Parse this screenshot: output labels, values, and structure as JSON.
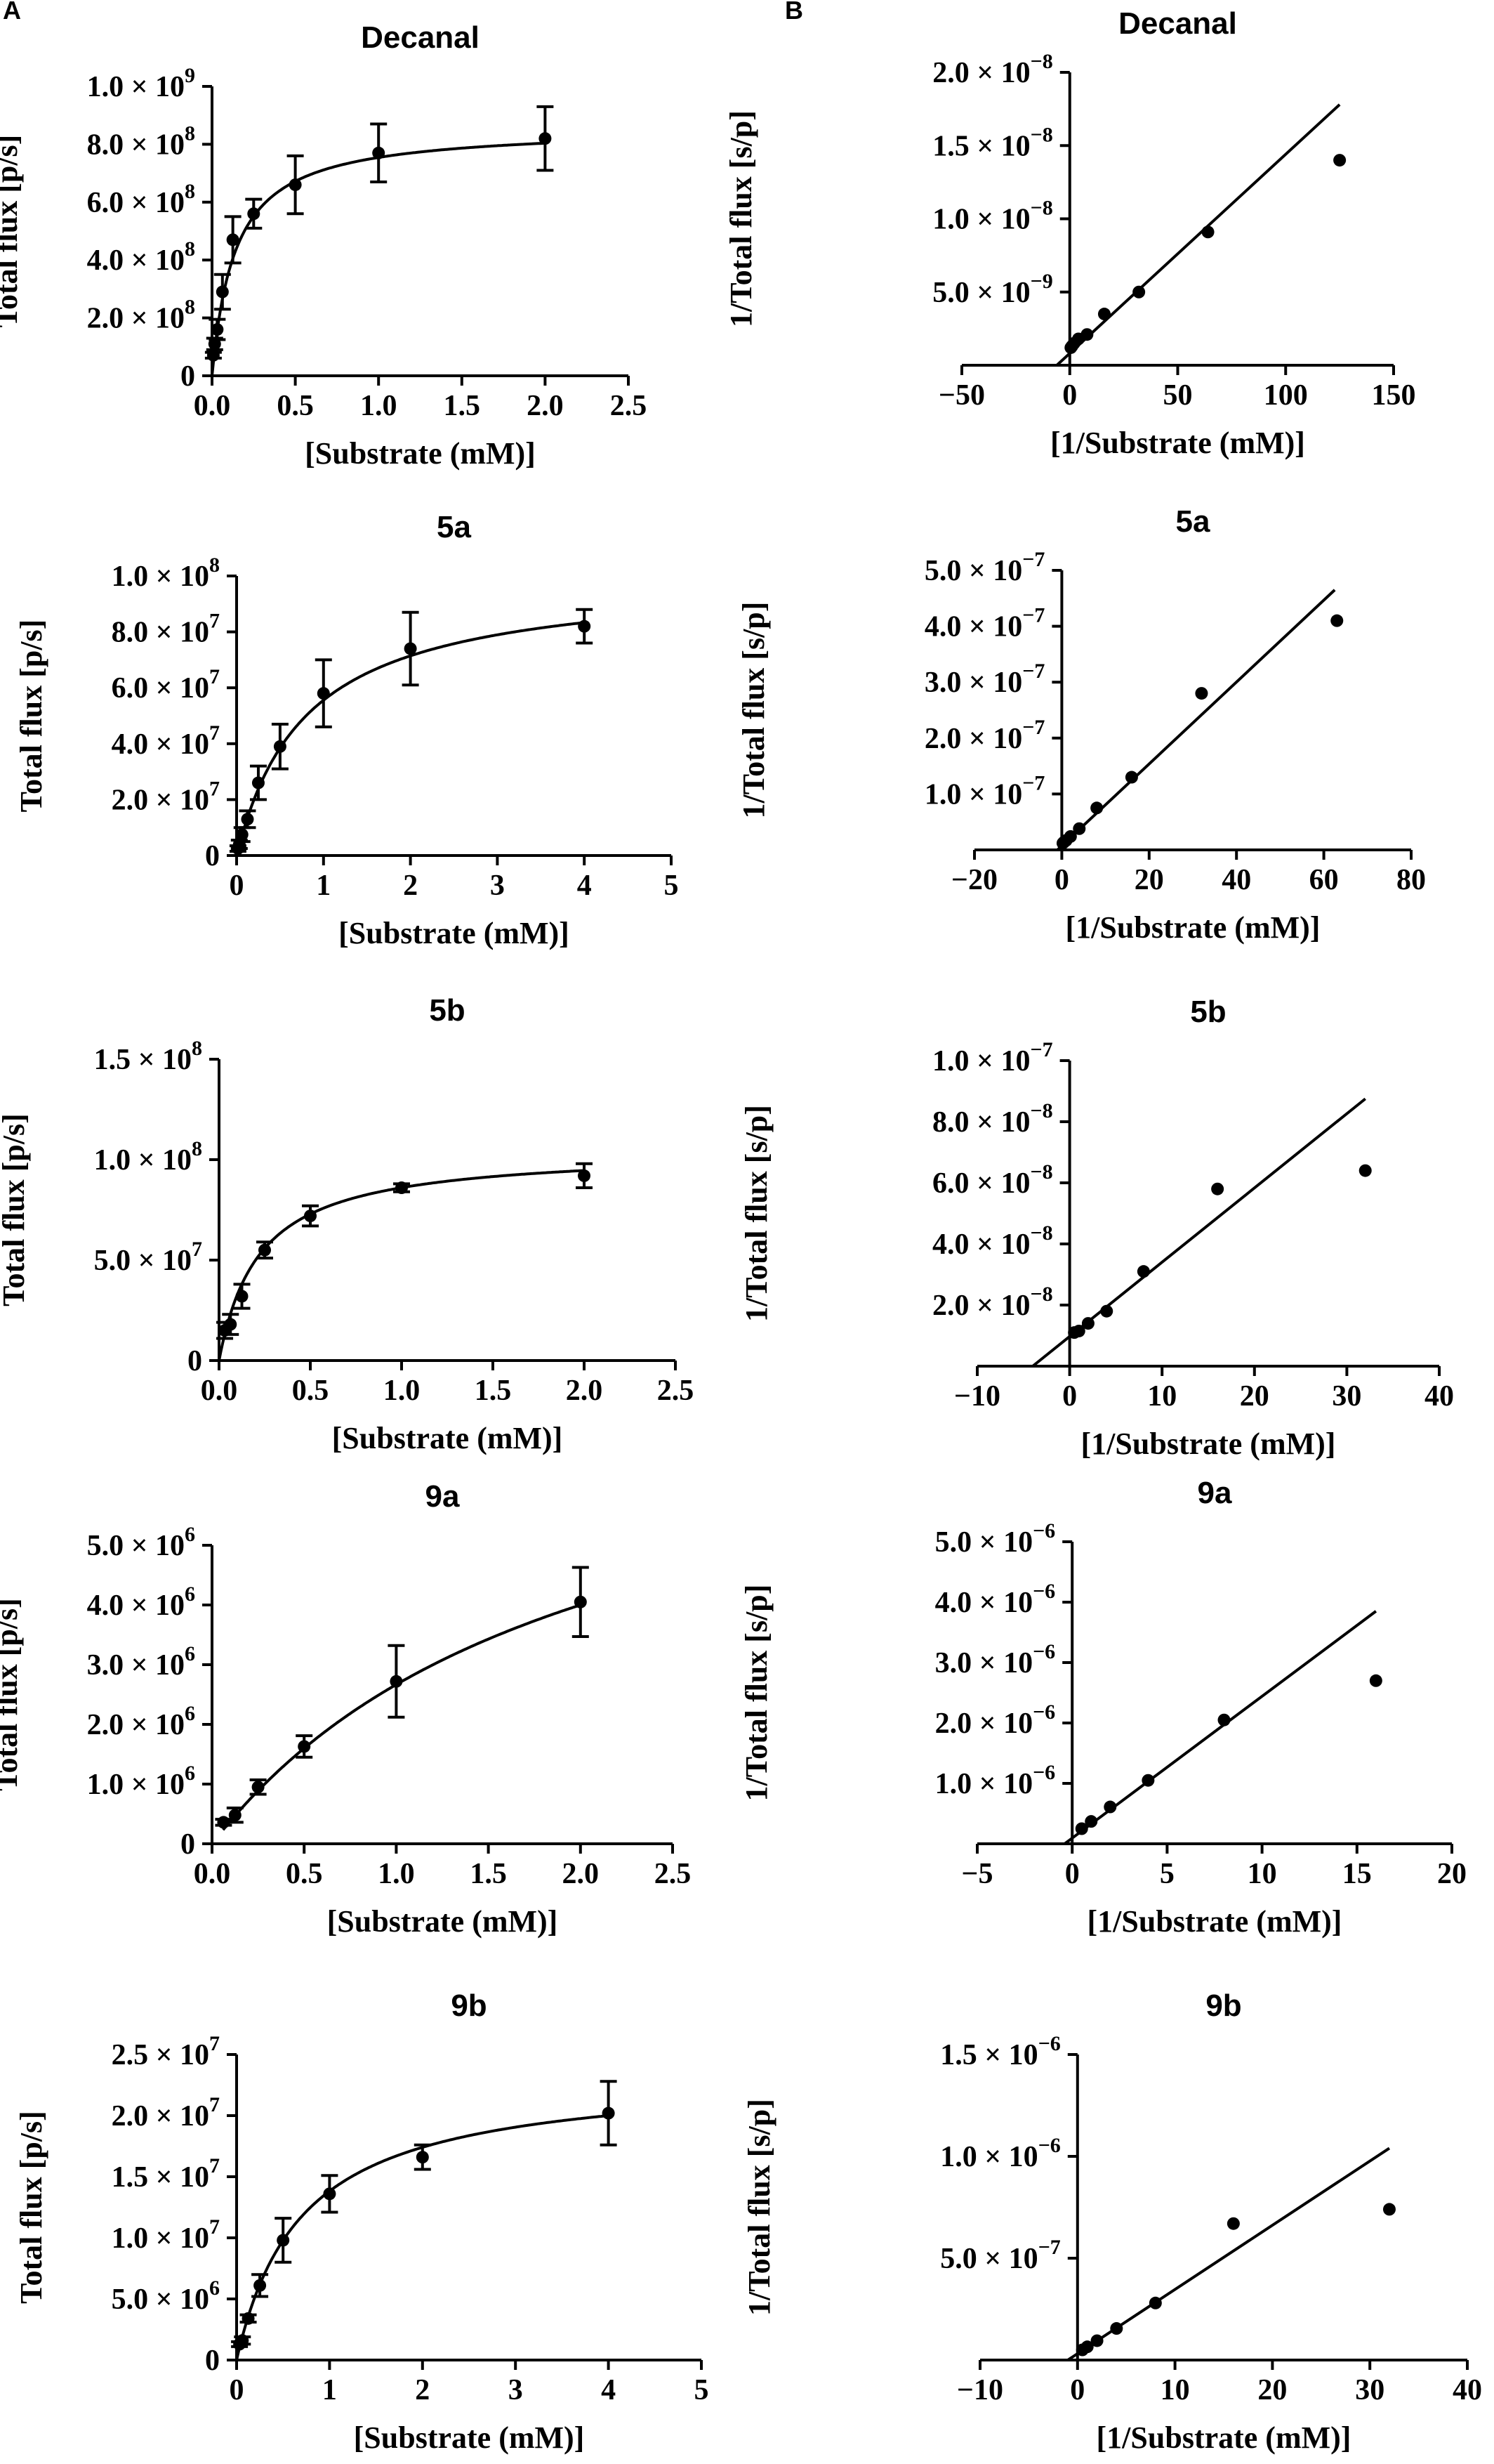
{
  "panel_labels": {
    "a": "A",
    "b": "B"
  },
  "chart_data": [
    {
      "id": "A1",
      "type": "scatter",
      "fit": "michaelis-menten",
      "title": "Decanal",
      "xlabel": "[Substrate (mM)]",
      "ylabel": "Total flux [p/s]",
      "xlim": [
        0,
        2.5
      ],
      "ylim": [
        0,
        1000000000.0
      ],
      "xticks": [
        {
          "v": 0,
          "t": "0.0"
        },
        {
          "v": 0.5,
          "t": "0.5"
        },
        {
          "v": 1.0,
          "t": "1.0"
        },
        {
          "v": 1.5,
          "t": "1.5"
        },
        {
          "v": 2.0,
          "t": "2.0"
        },
        {
          "v": 2.5,
          "t": "2.5"
        }
      ],
      "yticks": [
        {
          "v": 0,
          "m": "0",
          "e": ""
        },
        {
          "v": 200000000.0,
          "m": "2.0 × 10",
          "e": "8"
        },
        {
          "v": 400000000.0,
          "m": "4.0 × 10",
          "e": "8"
        },
        {
          "v": 600000000.0,
          "m": "6.0 × 10",
          "e": "8"
        },
        {
          "v": 800000000.0,
          "m": "8.0 × 10",
          "e": "8"
        },
        {
          "v": 1000000000.0,
          "m": "1.0 × 10",
          "e": "9"
        }
      ],
      "points": [
        {
          "x": 0.008,
          "y": 71000000.0,
          "err": 10000000.0
        },
        {
          "x": 0.016,
          "y": 110000000.0,
          "err": 20000000.0
        },
        {
          "x": 0.031,
          "y": 160000000.0,
          "err": 35000000.0
        },
        {
          "x": 0.0625,
          "y": 290000000.0,
          "err": 60000000.0
        },
        {
          "x": 0.125,
          "y": 470000000.0,
          "err": 80000000.0
        },
        {
          "x": 0.25,
          "y": 560000000.0,
          "err": 50000000.0
        },
        {
          "x": 0.5,
          "y": 660000000.0,
          "err": 100000000.0
        },
        {
          "x": 1.0,
          "y": 770000000.0,
          "err": 100000000.0
        },
        {
          "x": 2.0,
          "y": 820000000.0,
          "err": 110000000.0
        }
      ],
      "curve": {
        "vmax": 860000000.0,
        "km": 0.14,
        "x0": 0.0,
        "x1": 2.0
      }
    },
    {
      "id": "B1",
      "type": "scatter",
      "fit": "linear",
      "title": "Decanal",
      "xlabel": "[1/Substrate (mM)]",
      "ylabel": "1/Total flux [s/p]",
      "xlim": [
        -50,
        150
      ],
      "ylim": [
        0,
        2e-08
      ],
      "xticks": [
        {
          "v": -50,
          "t": "−50"
        },
        {
          "v": 0,
          "t": "0"
        },
        {
          "v": 50,
          "t": "50"
        },
        {
          "v": 100,
          "t": "100"
        },
        {
          "v": 150,
          "t": "150"
        }
      ],
      "yticks": [
        {
          "v": 5e-09,
          "m": "5.0 × 10",
          "e": "−9"
        },
        {
          "v": 1e-08,
          "m": "1.0 × 10",
          "e": "−8"
        },
        {
          "v": 1.5e-08,
          "m": "1.5 × 10",
          "e": "−8"
        },
        {
          "v": 2e-08,
          "m": "2.0 × 10",
          "e": "−8"
        }
      ],
      "points": [
        {
          "x": 0.5,
          "y": 1.2e-09
        },
        {
          "x": 1,
          "y": 1.3e-09
        },
        {
          "x": 2,
          "y": 1.5e-09
        },
        {
          "x": 4,
          "y": 1.8e-09
        },
        {
          "x": 8,
          "y": 2.1e-09
        },
        {
          "x": 16,
          "y": 3.5e-09
        },
        {
          "x": 32,
          "y": 5e-09
        },
        {
          "x": 64,
          "y": 9.1e-09
        },
        {
          "x": 125,
          "y": 1.4e-08
        }
      ],
      "line": {
        "x0": -6,
        "y0": 0,
        "x1": 125,
        "y1": 1.78e-08
      }
    },
    {
      "id": "A2",
      "type": "scatter",
      "fit": "michaelis-menten",
      "title": "5a",
      "xlabel": "[Substrate (mM)]",
      "ylabel": "Total flux [p/s]",
      "xlim": [
        0,
        5
      ],
      "ylim": [
        0,
        100000000.0
      ],
      "xticks": [
        {
          "v": 0,
          "t": "0"
        },
        {
          "v": 1,
          "t": "1"
        },
        {
          "v": 2,
          "t": "2"
        },
        {
          "v": 3,
          "t": "3"
        },
        {
          "v": 4,
          "t": "4"
        },
        {
          "v": 5,
          "t": "5"
        }
      ],
      "yticks": [
        {
          "v": 0,
          "m": "0",
          "e": ""
        },
        {
          "v": 20000000.0,
          "m": "2.0 × 10",
          "e": "7"
        },
        {
          "v": 40000000.0,
          "m": "4.0 × 10",
          "e": "7"
        },
        {
          "v": 60000000.0,
          "m": "6.0 × 10",
          "e": "7"
        },
        {
          "v": 80000000.0,
          "m": "8.0 × 10",
          "e": "7"
        },
        {
          "v": 100000000.0,
          "m": "1.0 × 10",
          "e": "8"
        }
      ],
      "points": [
        {
          "x": 0.0156,
          "y": 2500000.0,
          "err": 1000000.0
        },
        {
          "x": 0.031,
          "y": 4000000.0,
          "err": 1500000.0
        },
        {
          "x": 0.0625,
          "y": 7500000.0,
          "err": 2500000.0
        },
        {
          "x": 0.125,
          "y": 13000000.0,
          "err": 3000000.0
        },
        {
          "x": 0.25,
          "y": 26000000.0,
          "err": 6000000.0
        },
        {
          "x": 0.5,
          "y": 39000000.0,
          "err": 8000000.0
        },
        {
          "x": 1.0,
          "y": 58000000.0,
          "err": 12000000.0
        },
        {
          "x": 2.0,
          "y": 74000000.0,
          "err": 13000000.0
        },
        {
          "x": 4.0,
          "y": 82000000.0,
          "err": 6000000.0
        }
      ],
      "curve": {
        "vmax": 100000000.0,
        "km": 0.8,
        "x0": 0.0,
        "x1": 4.0
      }
    },
    {
      "id": "B2",
      "type": "scatter",
      "fit": "linear",
      "title": "5a",
      "xlabel": "[1/Substrate (mM)]",
      "ylabel": "1/Total flux [s/p]",
      "xlim": [
        -20,
        80
      ],
      "ylim": [
        0,
        5e-07
      ],
      "xticks": [
        {
          "v": -20,
          "t": "−20"
        },
        {
          "v": 0,
          "t": "0"
        },
        {
          "v": 20,
          "t": "20"
        },
        {
          "v": 40,
          "t": "40"
        },
        {
          "v": 60,
          "t": "60"
        },
        {
          "v": 80,
          "t": "80"
        }
      ],
      "yticks": [
        {
          "v": 1e-07,
          "m": "1.0 × 10",
          "e": "−7"
        },
        {
          "v": 2e-07,
          "m": "2.0 × 10",
          "e": "−7"
        },
        {
          "v": 3e-07,
          "m": "3.0 × 10",
          "e": "−7"
        },
        {
          "v": 4e-07,
          "m": "4.0 × 10",
          "e": "−7"
        },
        {
          "v": 5e-07,
          "m": "5.0 × 10",
          "e": "−7"
        }
      ],
      "points": [
        {
          "x": 0.25,
          "y": 1.2e-08
        },
        {
          "x": 0.5,
          "y": 1.4e-08
        },
        {
          "x": 1,
          "y": 1.7e-08
        },
        {
          "x": 2,
          "y": 2.4e-08
        },
        {
          "x": 4,
          "y": 3.8e-08
        },
        {
          "x": 8,
          "y": 7.5e-08
        },
        {
          "x": 16,
          "y": 1.3e-07
        },
        {
          "x": 32,
          "y": 2.8e-07
        },
        {
          "x": 63,
          "y": 4.1e-07
        }
      ],
      "line": {
        "x0": -1,
        "y0": 0,
        "x1": 62.5,
        "y1": 4.65e-07
      }
    },
    {
      "id": "A3",
      "type": "scatter",
      "fit": "michaelis-menten",
      "title": "5b",
      "xlabel": "[Substrate (mM)]",
      "ylabel": "Total flux [p/s]",
      "xlim": [
        0,
        2.5
      ],
      "ylim": [
        0,
        150000000.0
      ],
      "xticks": [
        {
          "v": 0,
          "t": "0.0"
        },
        {
          "v": 0.5,
          "t": "0.5"
        },
        {
          "v": 1.0,
          "t": "1.0"
        },
        {
          "v": 1.5,
          "t": "1.5"
        },
        {
          "v": 2.0,
          "t": "2.0"
        },
        {
          "v": 2.5,
          "t": "2.5"
        }
      ],
      "yticks": [
        {
          "v": 0,
          "m": "0",
          "e": ""
        },
        {
          "v": 50000000.0,
          "m": "5.0 × 10",
          "e": "7"
        },
        {
          "v": 100000000.0,
          "m": "1.0 × 10",
          "e": "8"
        },
        {
          "v": 150000000.0,
          "m": "1.5 × 10",
          "e": "8"
        }
      ],
      "points": [
        {
          "x": 0.031,
          "y": 15000000.0,
          "err": 4000000.0
        },
        {
          "x": 0.0625,
          "y": 18000000.0,
          "err": 5000000.0
        },
        {
          "x": 0.125,
          "y": 32000000.0,
          "err": 6000000.0
        },
        {
          "x": 0.25,
          "y": 55000000.0,
          "err": 4000000.0
        },
        {
          "x": 0.5,
          "y": 72000000.0,
          "err": 5000000.0
        },
        {
          "x": 1.0,
          "y": 86000000.0,
          "err": 2000000.0
        },
        {
          "x": 2.0,
          "y": 92000000.0,
          "err": 6000000.0
        }
      ],
      "curve": {
        "vmax": 105000000.0,
        "km": 0.22,
        "x0": 0.0,
        "x1": 2.0
      }
    },
    {
      "id": "B3",
      "type": "scatter",
      "fit": "linear",
      "title": "5b",
      "xlabel": "[1/Substrate (mM)]",
      "ylabel": "1/Total flux [s/p]",
      "xlim": [
        -10,
        40
      ],
      "ylim": [
        0,
        1e-07
      ],
      "xticks": [
        {
          "v": -10,
          "t": "−10"
        },
        {
          "v": 0,
          "t": "0"
        },
        {
          "v": 10,
          "t": "10"
        },
        {
          "v": 20,
          "t": "20"
        },
        {
          "v": 30,
          "t": "30"
        },
        {
          "v": 40,
          "t": "40"
        }
      ],
      "yticks": [
        {
          "v": 2e-08,
          "m": "2.0 × 10",
          "e": "−8"
        },
        {
          "v": 4e-08,
          "m": "4.0 × 10",
          "e": "−8"
        },
        {
          "v": 6e-08,
          "m": "6.0 × 10",
          "e": "−8"
        },
        {
          "v": 8e-08,
          "m": "8.0 × 10",
          "e": "−8"
        },
        {
          "v": 1e-07,
          "m": "1.0 × 10",
          "e": "−7"
        }
      ],
      "points": [
        {
          "x": 0.5,
          "y": 1.1e-08
        },
        {
          "x": 1,
          "y": 1.15e-08
        },
        {
          "x": 2,
          "y": 1.4e-08
        },
        {
          "x": 4,
          "y": 1.8e-08
        },
        {
          "x": 8,
          "y": 3.1e-08
        },
        {
          "x": 16,
          "y": 5.8e-08
        },
        {
          "x": 32,
          "y": 6.4e-08
        }
      ],
      "line": {
        "x0": -4,
        "y0": 0,
        "x1": 32,
        "y1": 8.75e-08
      }
    },
    {
      "id": "A4",
      "type": "scatter",
      "fit": "michaelis-menten",
      "title": "9a",
      "xlabel": "[Substrate (mM)]",
      "ylabel": "Total flux [p/s]",
      "xlim": [
        0,
        2.5
      ],
      "ylim": [
        0,
        5000000.0
      ],
      "xticks": [
        {
          "v": 0,
          "t": "0.0"
        },
        {
          "v": 0.5,
          "t": "0.5"
        },
        {
          "v": 1.0,
          "t": "1.0"
        },
        {
          "v": 1.5,
          "t": "1.5"
        },
        {
          "v": 2.0,
          "t": "2.0"
        },
        {
          "v": 2.5,
          "t": "2.5"
        }
      ],
      "yticks": [
        {
          "v": 0,
          "m": "0",
          "e": ""
        },
        {
          "v": 1000000.0,
          "m": "1.0 × 10",
          "e": "6"
        },
        {
          "v": 2000000.0,
          "m": "2.0 × 10",
          "e": "6"
        },
        {
          "v": 3000000.0,
          "m": "3.0 × 10",
          "e": "6"
        },
        {
          "v": 4000000.0,
          "m": "4.0 × 10",
          "e": "6"
        },
        {
          "v": 5000000.0,
          "m": "5.0 × 10",
          "e": "6"
        }
      ],
      "points": [
        {
          "x": 0.0625,
          "y": 360000.0,
          "err": 50000.0
        },
        {
          "x": 0.125,
          "y": 480000.0,
          "err": 120000.0
        },
        {
          "x": 0.25,
          "y": 950000.0,
          "err": 120000.0
        },
        {
          "x": 0.5,
          "y": 1630000.0,
          "err": 180000.0
        },
        {
          "x": 1.0,
          "y": 2720000.0,
          "err": 600000.0
        },
        {
          "x": 2.0,
          "y": 4050000.0,
          "err": 580000.0
        }
      ],
      "curve": {
        "vmax": 8000000.0,
        "km": 2.0,
        "x0": 0.06,
        "x1": 2.0
      }
    },
    {
      "id": "B4",
      "type": "scatter",
      "fit": "linear",
      "title": "9a",
      "xlabel": "[1/Substrate (mM)]",
      "ylabel": "1/Total flux [s/p]",
      "xlim": [
        -5,
        20
      ],
      "ylim": [
        0,
        5e-06
      ],
      "xticks": [
        {
          "v": -5,
          "t": "−5"
        },
        {
          "v": 0,
          "t": "0"
        },
        {
          "v": 5,
          "t": "5"
        },
        {
          "v": 10,
          "t": "10"
        },
        {
          "v": 15,
          "t": "15"
        },
        {
          "v": 20,
          "t": "20"
        }
      ],
      "yticks": [
        {
          "v": 1e-06,
          "m": "1.0 × 10",
          "e": "−6"
        },
        {
          "v": 2e-06,
          "m": "2.0 × 10",
          "e": "−6"
        },
        {
          "v": 3e-06,
          "m": "3.0 × 10",
          "e": "−6"
        },
        {
          "v": 4e-06,
          "m": "4.0 × 10",
          "e": "−6"
        },
        {
          "v": 5e-06,
          "m": "5.0 × 10",
          "e": "−6"
        }
      ],
      "points": [
        {
          "x": 0.5,
          "y": 2.5e-07
        },
        {
          "x": 1,
          "y": 3.7e-07
        },
        {
          "x": 2,
          "y": 6.1e-07
        },
        {
          "x": 4,
          "y": 1.05e-06
        },
        {
          "x": 8,
          "y": 2.05e-06
        },
        {
          "x": 16,
          "y": 2.7e-06
        }
      ],
      "line": {
        "x0": -0.4,
        "y0": 0,
        "x1": 16,
        "y1": 3.85e-06
      }
    },
    {
      "id": "A5",
      "type": "scatter",
      "fit": "michaelis-menten",
      "title": "9b",
      "xlabel": "[Substrate (mM)]",
      "ylabel": "Total flux [p/s]",
      "xlim": [
        0,
        5
      ],
      "ylim": [
        0,
        25000000.0
      ],
      "xticks": [
        {
          "v": 0,
          "t": "0"
        },
        {
          "v": 1,
          "t": "1"
        },
        {
          "v": 2,
          "t": "2"
        },
        {
          "v": 3,
          "t": "3"
        },
        {
          "v": 4,
          "t": "4"
        },
        {
          "v": 5,
          "t": "5"
        }
      ],
      "yticks": [
        {
          "v": 0,
          "m": "0",
          "e": ""
        },
        {
          "v": 5000000.0,
          "m": "5.0 × 10",
          "e": "6"
        },
        {
          "v": 10000000.0,
          "m": "1.0 × 10",
          "e": "7"
        },
        {
          "v": 15000000.0,
          "m": "1.5 × 10",
          "e": "7"
        },
        {
          "v": 20000000.0,
          "m": "2.0 × 10",
          "e": "7"
        },
        {
          "v": 25000000.0,
          "m": "2.5 × 10",
          "e": "7"
        }
      ],
      "points": [
        {
          "x": 0.031,
          "y": 1300000.0,
          "err": 200000.0
        },
        {
          "x": 0.0625,
          "y": 1600000.0,
          "err": 300000.0
        },
        {
          "x": 0.125,
          "y": 3400000.0,
          "err": 300000.0
        },
        {
          "x": 0.25,
          "y": 6100000.0,
          "err": 900000.0
        },
        {
          "x": 0.5,
          "y": 9800000.0,
          "err": 1800000.0
        },
        {
          "x": 1.0,
          "y": 13600000.0,
          "err": 1500000.0
        },
        {
          "x": 2.0,
          "y": 16600000.0,
          "err": 1000000.0
        },
        {
          "x": 4.0,
          "y": 20200000.0,
          "err": 2600000.0
        }
      ],
      "curve": {
        "vmax": 23500000.0,
        "km": 0.7,
        "x0": 0.0,
        "x1": 4.0
      }
    },
    {
      "id": "B5",
      "type": "scatter",
      "fit": "linear",
      "title": "9b",
      "xlabel": "[1/Substrate (mM)]",
      "ylabel": "1/Total flux [s/p]",
      "xlim": [
        -10,
        40
      ],
      "ylim": [
        0,
        1.5e-06
      ],
      "xticks": [
        {
          "v": -10,
          "t": "−10"
        },
        {
          "v": 0,
          "t": "0"
        },
        {
          "v": 10,
          "t": "10"
        },
        {
          "v": 20,
          "t": "20"
        },
        {
          "v": 30,
          "t": "30"
        },
        {
          "v": 40,
          "t": "40"
        }
      ],
      "yticks": [
        {
          "v": 5e-07,
          "m": "5.0 × 10",
          "e": "−7"
        },
        {
          "v": 1e-06,
          "m": "1.0 × 10",
          "e": "−6"
        },
        {
          "v": 1.5e-06,
          "m": "1.5 × 10",
          "e": "−6"
        }
      ],
      "points": [
        {
          "x": 0.5,
          "y": 5e-08
        },
        {
          "x": 1,
          "y": 6.5e-08
        },
        {
          "x": 2,
          "y": 9.5e-08
        },
        {
          "x": 4,
          "y": 1.55e-07
        },
        {
          "x": 8,
          "y": 2.8e-07
        },
        {
          "x": 16,
          "y": 6.7e-07
        },
        {
          "x": 32,
          "y": 7.4e-07
        }
      ],
      "line": {
        "x0": -1,
        "y0": 0,
        "x1": 32,
        "y1": 1.04e-06
      }
    }
  ]
}
